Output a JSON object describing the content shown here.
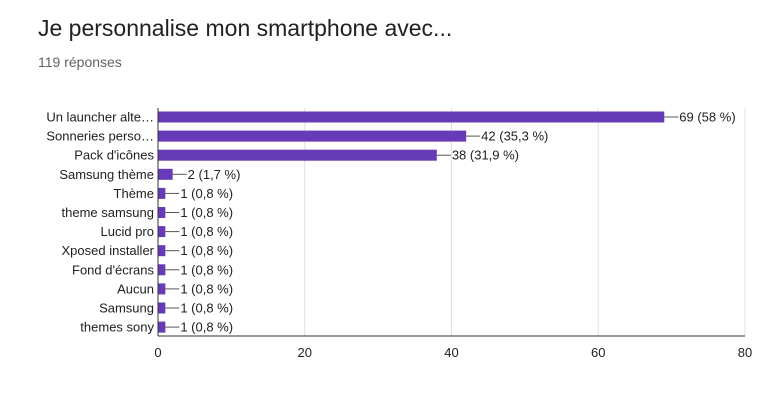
{
  "header": {
    "title": "Je personnalise mon smartphone avec...",
    "responses": "119 réponses"
  },
  "colors": {
    "bar": "#673ab7",
    "grid": "#e0e0e0",
    "axis": "#333333",
    "text": "#212121"
  },
  "chart_data": {
    "type": "bar",
    "orientation": "horizontal",
    "title": "Je personnalise mon smartphone avec...",
    "xlabel": "",
    "ylabel": "",
    "xlim": [
      0,
      80
    ],
    "x_ticks": [
      0,
      20,
      40,
      60,
      80
    ],
    "grid": true,
    "categories": [
      "Un launcher alte…",
      "Sonneries perso…",
      "Pack d'icônes",
      "Samsung thème",
      "Thème",
      "theme samsung",
      "Lucid pro",
      "Xposed installer",
      "Fond d'écrans",
      "Aucun",
      "Samsung",
      "themes sony"
    ],
    "values": [
      69,
      42,
      38,
      2,
      1,
      1,
      1,
      1,
      1,
      1,
      1,
      1
    ],
    "data_labels": [
      "69 (58 %)",
      "42 (35,3 %)",
      "38 (31,9 %)",
      "2 (1,7 %)",
      "1 (0,8 %)",
      "1 (0,8 %)",
      "1 (0,8 %)",
      "1 (0,8 %)",
      "1 (0,8 %)",
      "1 (0,8 %)",
      "1 (0,8 %)",
      "1 (0,8 %)"
    ]
  }
}
